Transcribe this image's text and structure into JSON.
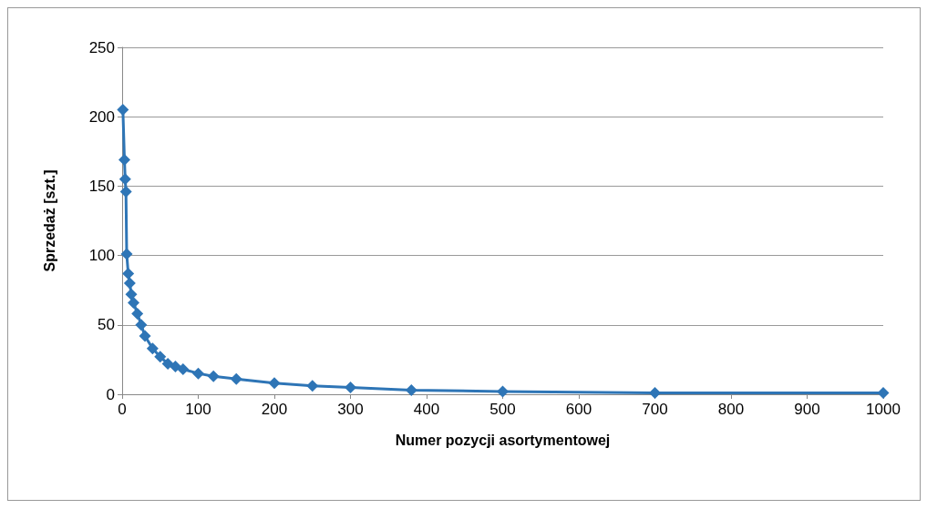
{
  "chart_data": {
    "type": "line",
    "xlabel": "Numer pozycji asortymentowej",
    "ylabel": "Sprzedaż [szt.]",
    "color": "#2e75b6",
    "marker": "diamond",
    "grid": "y",
    "x": [
      1,
      3,
      4,
      5,
      6,
      8,
      10,
      12,
      15,
      20,
      25,
      30,
      40,
      50,
      60,
      70,
      80,
      100,
      120,
      150,
      200,
      250,
      300,
      380,
      500,
      700,
      1000
    ],
    "values": [
      205,
      169,
      155,
      146,
      101,
      87,
      80,
      72,
      66,
      58,
      50,
      42,
      33,
      27,
      22,
      20,
      18,
      15,
      13,
      11,
      8,
      6,
      5,
      3,
      2,
      1,
      1
    ],
    "xlim": [
      0,
      1000
    ],
    "xticks": [
      0,
      100,
      200,
      300,
      400,
      500,
      600,
      700,
      800,
      900,
      1000
    ],
    "ylim": [
      0,
      250
    ],
    "yticks": [
      0,
      50,
      100,
      150,
      200,
      250
    ]
  }
}
